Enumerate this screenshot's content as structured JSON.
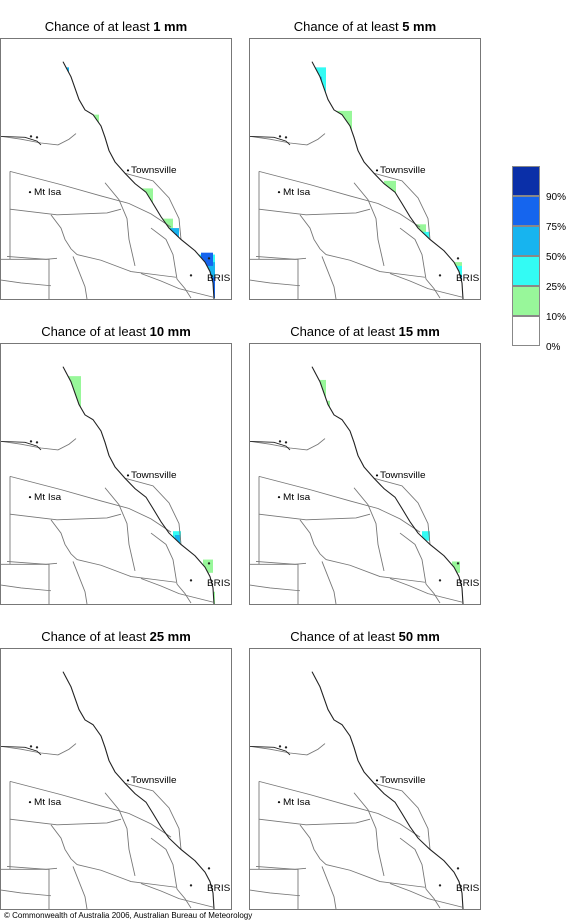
{
  "panels": [
    {
      "prefix": "Chance of at least",
      "amount": "1 mm"
    },
    {
      "prefix": "Chance of at least",
      "amount": "5 mm"
    },
    {
      "prefix": "Chance of at least",
      "amount": "10 mm"
    },
    {
      "prefix": "Chance of at least",
      "amount": "15 mm"
    },
    {
      "prefix": "Chance of at least",
      "amount": "25 mm"
    },
    {
      "prefix": "Chance of at least",
      "amount": "50 mm"
    }
  ],
  "map_labels": {
    "townsville": "Townsville",
    "mt_isa": "Mt Isa",
    "bris": "BRIS"
  },
  "legend": {
    "labels": [
      "90%",
      "75%",
      "50%",
      "25%",
      "10%",
      "0%"
    ],
    "colors": [
      "#0a2fa8",
      "#1565ee",
      "#17b4ef",
      "#33fbf4",
      "#98f79a",
      "#ffffff"
    ]
  },
  "copyright": "© Commonwealth of Australia 2006, Australian Bureau of Meteorology"
}
